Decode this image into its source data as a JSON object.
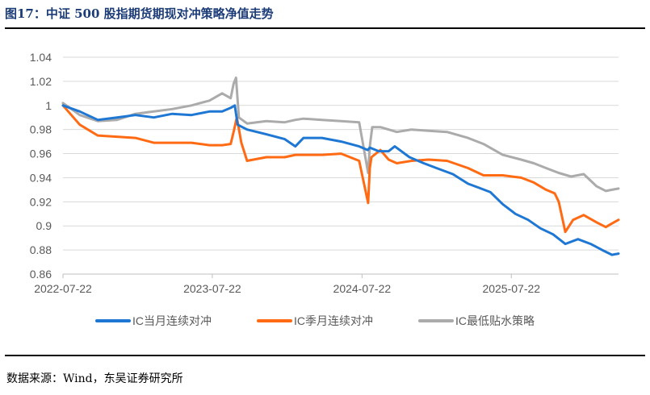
{
  "title": "图17：中证 500 股指期货期现对冲策略净值走势",
  "source": "数据来源：Wind，东吴证券研究所",
  "chart_data": {
    "type": "line",
    "title": "",
    "xlabel": "",
    "ylabel": "",
    "ylim": [
      0.86,
      1.04
    ],
    "yticks": [
      0.86,
      0.88,
      0.9,
      0.92,
      0.94,
      0.96,
      0.98,
      1,
      1.02,
      1.04
    ],
    "ytick_labels": [
      "0.86",
      "0.88",
      "0.9",
      "0.92",
      "0.94",
      "0.96",
      "0.98",
      "1",
      "1.02",
      "1.04"
    ],
    "xlim": [
      "2022-07-22",
      "2026-04-10"
    ],
    "xticks": [
      "2022-07-22",
      "2023-07-22",
      "2024-07-22",
      "2025-07-22"
    ],
    "grid": true,
    "legend_position": "bottom",
    "series": [
      {
        "name": "IC当月连续对冲",
        "color": "#1f77d4",
        "x": [
          "2022-07-22",
          "2022-09-01",
          "2022-10-15",
          "2022-12-01",
          "2023-01-15",
          "2023-03-01",
          "2023-04-15",
          "2023-06-01",
          "2023-07-15",
          "2023-08-15",
          "2023-09-05",
          "2023-09-15",
          "2023-09-22",
          "2023-10-15",
          "2023-12-01",
          "2024-01-15",
          "2024-02-10",
          "2024-03-01",
          "2024-04-15",
          "2024-06-01",
          "2024-07-15",
          "2024-08-05",
          "2024-08-10",
          "2024-09-01",
          "2024-09-25",
          "2024-10-10",
          "2024-11-15",
          "2024-12-20",
          "2025-01-20",
          "2025-03-01",
          "2025-04-07",
          "2025-05-01",
          "2025-06-01",
          "2025-07-01",
          "2025-08-01",
          "2025-09-01",
          "2025-10-01",
          "2025-11-01",
          "2025-12-01",
          "2026-01-01",
          "2026-02-01",
          "2026-03-01",
          "2026-03-25",
          "2026-04-10"
        ],
        "values": [
          1.0,
          0.995,
          0.988,
          0.99,
          0.992,
          0.99,
          0.993,
          0.992,
          0.995,
          0.995,
          0.998,
          1.0,
          0.984,
          0.98,
          0.976,
          0.972,
          0.966,
          0.973,
          0.973,
          0.97,
          0.966,
          0.963,
          0.965,
          0.962,
          0.962,
          0.966,
          0.957,
          0.952,
          0.948,
          0.943,
          0.935,
          0.932,
          0.928,
          0.918,
          0.91,
          0.905,
          0.898,
          0.893,
          0.885,
          0.889,
          0.885,
          0.88,
          0.876,
          0.877
        ]
      },
      {
        "name": "IC季月连续对冲",
        "color": "#ff6a13",
        "x": [
          "2022-07-22",
          "2022-09-01",
          "2022-10-15",
          "2022-12-01",
          "2023-01-15",
          "2023-03-01",
          "2023-04-15",
          "2023-06-01",
          "2023-07-15",
          "2023-08-15",
          "2023-09-05",
          "2023-09-12",
          "2023-09-20",
          "2023-10-01",
          "2023-10-15",
          "2023-12-01",
          "2024-01-15",
          "2024-02-10",
          "2024-03-01",
          "2024-04-15",
          "2024-06-01",
          "2024-07-15",
          "2024-08-06",
          "2024-08-10",
          "2024-08-14",
          "2024-09-05",
          "2024-09-25",
          "2024-10-15",
          "2024-11-20",
          "2025-01-01",
          "2025-02-15",
          "2025-04-07",
          "2025-05-15",
          "2025-07-01",
          "2025-08-15",
          "2025-09-15",
          "2025-10-15",
          "2025-11-05",
          "2025-11-15",
          "2025-12-01",
          "2025-12-20",
          "2026-01-15",
          "2026-02-15",
          "2026-03-10",
          "2026-03-25",
          "2026-04-10"
        ],
        "values": [
          1.0,
          0.984,
          0.975,
          0.974,
          0.973,
          0.969,
          0.969,
          0.969,
          0.967,
          0.967,
          0.968,
          0.978,
          0.99,
          0.969,
          0.954,
          0.957,
          0.957,
          0.959,
          0.959,
          0.959,
          0.96,
          0.954,
          0.919,
          0.948,
          0.957,
          0.963,
          0.955,
          0.952,
          0.954,
          0.955,
          0.954,
          0.948,
          0.942,
          0.942,
          0.94,
          0.936,
          0.93,
          0.927,
          0.92,
          0.895,
          0.905,
          0.909,
          0.903,
          0.899,
          0.902,
          0.905
        ]
      },
      {
        "name": "IC最低贴水策略",
        "color": "#ababab",
        "x": [
          "2022-07-22",
          "2022-09-01",
          "2022-10-15",
          "2022-12-01",
          "2023-01-15",
          "2023-03-01",
          "2023-04-15",
          "2023-06-01",
          "2023-07-15",
          "2023-08-15",
          "2023-09-05",
          "2023-09-12",
          "2023-09-18",
          "2023-09-25",
          "2023-10-15",
          "2023-12-01",
          "2024-01-15",
          "2024-02-10",
          "2024-03-01",
          "2024-04-15",
          "2024-06-01",
          "2024-07-15",
          "2024-08-06",
          "2024-08-10",
          "2024-08-16",
          "2024-09-05",
          "2024-09-25",
          "2024-10-15",
          "2024-11-20",
          "2025-01-01",
          "2025-02-15",
          "2025-04-07",
          "2025-05-15",
          "2025-07-01",
          "2025-08-15",
          "2025-09-15",
          "2025-10-15",
          "2025-11-15",
          "2025-12-15",
          "2026-01-15",
          "2026-02-15",
          "2026-03-10",
          "2026-03-25",
          "2026-04-10"
        ],
        "values": [
          1.002,
          0.992,
          0.987,
          0.988,
          0.993,
          0.995,
          0.997,
          1.0,
          1.004,
          1.01,
          1.006,
          1.018,
          1.023,
          0.99,
          0.985,
          0.987,
          0.986,
          0.988,
          0.989,
          0.988,
          0.987,
          0.986,
          0.944,
          0.966,
          0.982,
          0.982,
          0.98,
          0.978,
          0.98,
          0.979,
          0.978,
          0.973,
          0.968,
          0.959,
          0.955,
          0.952,
          0.948,
          0.944,
          0.941,
          0.943,
          0.933,
          0.929,
          0.93,
          0.931
        ]
      }
    ]
  }
}
